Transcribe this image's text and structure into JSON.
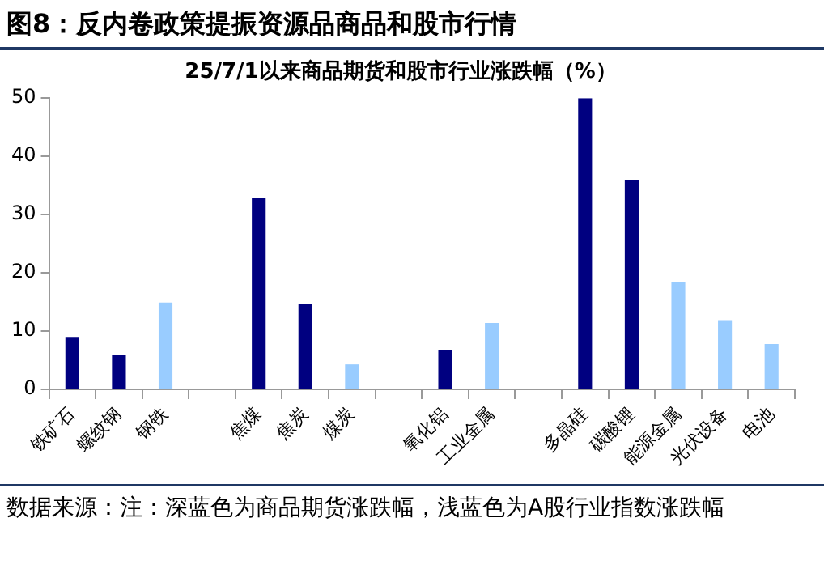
{
  "chart_data": {
    "type": "bar",
    "title": "图8：反内卷政策提振资源品商品和股市行情",
    "subtitle": "25/7/1以来商品期货和股市行业涨跌幅（%）",
    "categories": [
      "铁矿石",
      "螺纹钢",
      "钢铁",
      null,
      "焦煤",
      "焦炭",
      "煤炭",
      null,
      "氧化铝",
      "工业金属",
      null,
      "多晶硅",
      "碳酸锂",
      "能源金属",
      "光伏设备",
      "电池"
    ],
    "values": [
      9.0,
      5.9,
      14.9,
      null,
      32.8,
      14.6,
      4.3,
      null,
      6.8,
      11.4,
      null,
      50,
      35.9,
      18.4,
      11.9,
      7.8
    ],
    "colors": [
      "#000080",
      "#000080",
      "#99ccff",
      null,
      "#000080",
      "#000080",
      "#99ccff",
      null,
      "#000080",
      "#99ccff",
      null,
      "#000080",
      "#000080",
      "#99ccff",
      "#99ccff",
      "#99ccff"
    ],
    "ylim": [
      0,
      50
    ],
    "yticks": [
      0,
      10,
      20,
      30,
      40,
      50
    ],
    "grid": false,
    "legend": false,
    "annotations": [
      "数据来源：注：深蓝色为商品期货涨跌幅，浅蓝色为A股行业指数涨跌幅"
    ]
  }
}
